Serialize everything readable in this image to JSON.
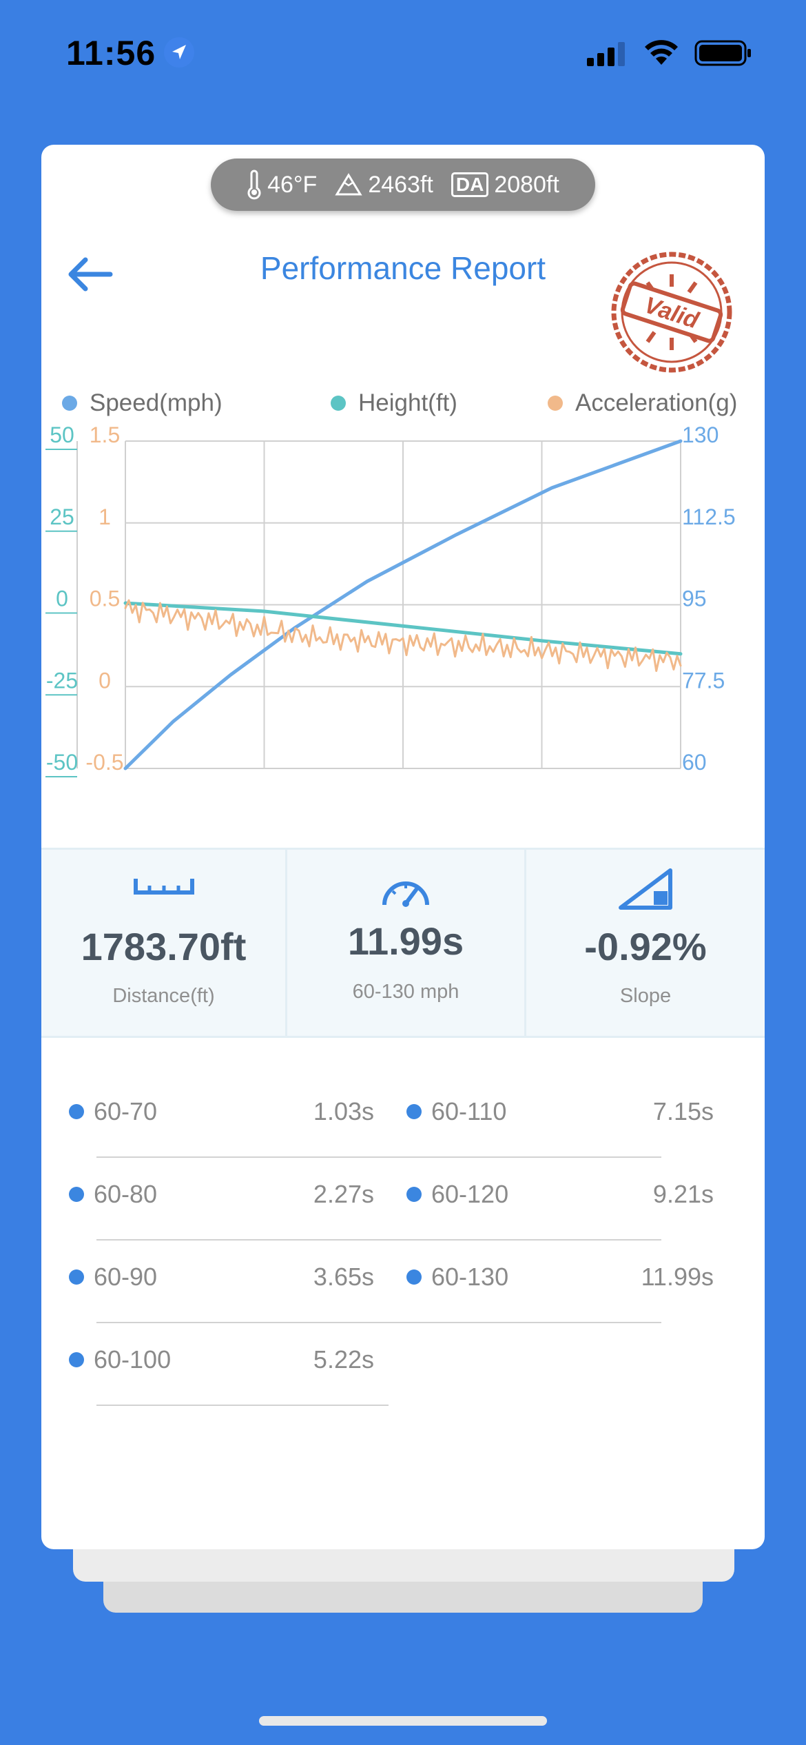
{
  "status_bar": {
    "time": "11:56"
  },
  "conditions": {
    "temperature": "46°F",
    "altitude": "2463ft",
    "da_badge": "DA",
    "density_altitude": "2080ft"
  },
  "header": {
    "title": "Performance Report",
    "stamp_text": "Valid"
  },
  "legend": [
    {
      "label": "Speed(mph)",
      "color": "#6ba9e6"
    },
    {
      "label": "Height(ft)",
      "color": "#5cc4c4"
    },
    {
      "label": "Acceleration(g)",
      "color": "#f1b98a"
    }
  ],
  "chart_data": {
    "type": "line",
    "axes": {
      "height_ticks": [
        "50",
        "25",
        "0",
        "-25",
        "-50"
      ],
      "accel_ticks": [
        "1.5",
        "1",
        "0.5",
        "0",
        "-0.5"
      ],
      "speed_ticks": [
        "130",
        "112.5",
        "95",
        "77.5",
        "60"
      ],
      "height_range": [
        -50,
        50
      ],
      "accel_range": [
        -0.5,
        1.5
      ],
      "speed_range": [
        60,
        130
      ],
      "x_range": [
        0,
        11.99
      ],
      "grid": true
    },
    "series": [
      {
        "name": "Speed(mph)",
        "color": "#6ba9e6",
        "x": [
          0,
          1.03,
          2.27,
          3.65,
          5.22,
          7.15,
          9.21,
          11.99
        ],
        "values": [
          60,
          70,
          80,
          90,
          100,
          110,
          120,
          130
        ]
      },
      {
        "name": "Height(ft)",
        "color": "#5cc4c4",
        "x": [
          0,
          3,
          6,
          9,
          11.99
        ],
        "values": [
          0.5,
          -2,
          -6.5,
          -11,
          -15
        ]
      },
      {
        "name": "Acceleration(g)",
        "color": "#f1b98a",
        "x": [
          0,
          2,
          4,
          6,
          8,
          10,
          11.99
        ],
        "values": [
          0.48,
          0.4,
          0.3,
          0.27,
          0.24,
          0.2,
          0.16
        ]
      }
    ]
  },
  "stats": [
    {
      "icon": "ruler-icon",
      "value": "1783.70ft",
      "label": "Distance(ft)"
    },
    {
      "icon": "speedometer-icon",
      "value": "11.99s",
      "label": "60-130 mph"
    },
    {
      "icon": "slope-icon",
      "value": "-0.92%",
      "label": "Slope"
    }
  ],
  "splits": [
    {
      "label": "60-70",
      "value": "1.03s"
    },
    {
      "label": "60-80",
      "value": "2.27s"
    },
    {
      "label": "60-90",
      "value": "3.65s"
    },
    {
      "label": "60-100",
      "value": "5.22s"
    },
    {
      "label": "60-110",
      "value": "7.15s"
    },
    {
      "label": "60-120",
      "value": "9.21s"
    },
    {
      "label": "60-130",
      "value": "11.99s"
    }
  ]
}
